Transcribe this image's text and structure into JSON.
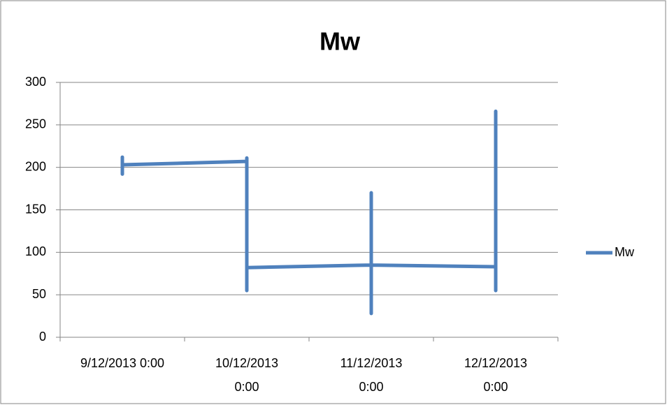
{
  "chart_data": {
    "type": "line",
    "title": "Mw",
    "categories": [
      "9/12/2013 0:00",
      "10/12/2013 0:00",
      "11/12/2013 0:00",
      "12/12/2013 0:00"
    ],
    "x": [
      "9/12/2013 0:00",
      "9/12/2013 0:00",
      "9/12/2013 0:00",
      "9/12/2013 0:00",
      "10/12/2013 0:00",
      "10/12/2013 0:00",
      "10/12/2013 0:00",
      "10/12/2013 0:00",
      "10/12/2013 0:00",
      "11/12/2013 0:00",
      "11/12/2013 0:00",
      "11/12/2013 0:00",
      "11/12/2013 0:00",
      "11/12/2013 0:00",
      "12/12/2013 0:00",
      "12/12/2013 0:00",
      "12/12/2013 0:00",
      "12/12/2013 0:00"
    ],
    "series": [
      {
        "name": "Mw",
        "color": "#4f81bd",
        "values": [
          203,
          212,
          192,
          203,
          207,
          211,
          55,
          160,
          82,
          85,
          170,
          28,
          60,
          85,
          83,
          55,
          266,
          220
        ]
      }
    ],
    "ylim": [
      0,
      300
    ],
    "yticks": [
      0,
      50,
      100,
      150,
      200,
      250,
      300
    ],
    "grid": true,
    "legend": "right"
  }
}
